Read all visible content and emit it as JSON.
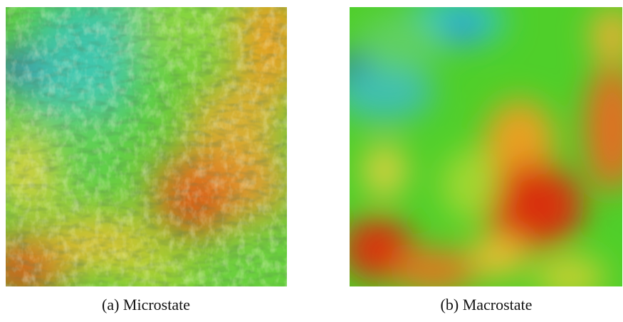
{
  "figures": [
    {
      "caption": "(a) Microstate"
    },
    {
      "caption": "(b) Macrostate"
    }
  ]
}
